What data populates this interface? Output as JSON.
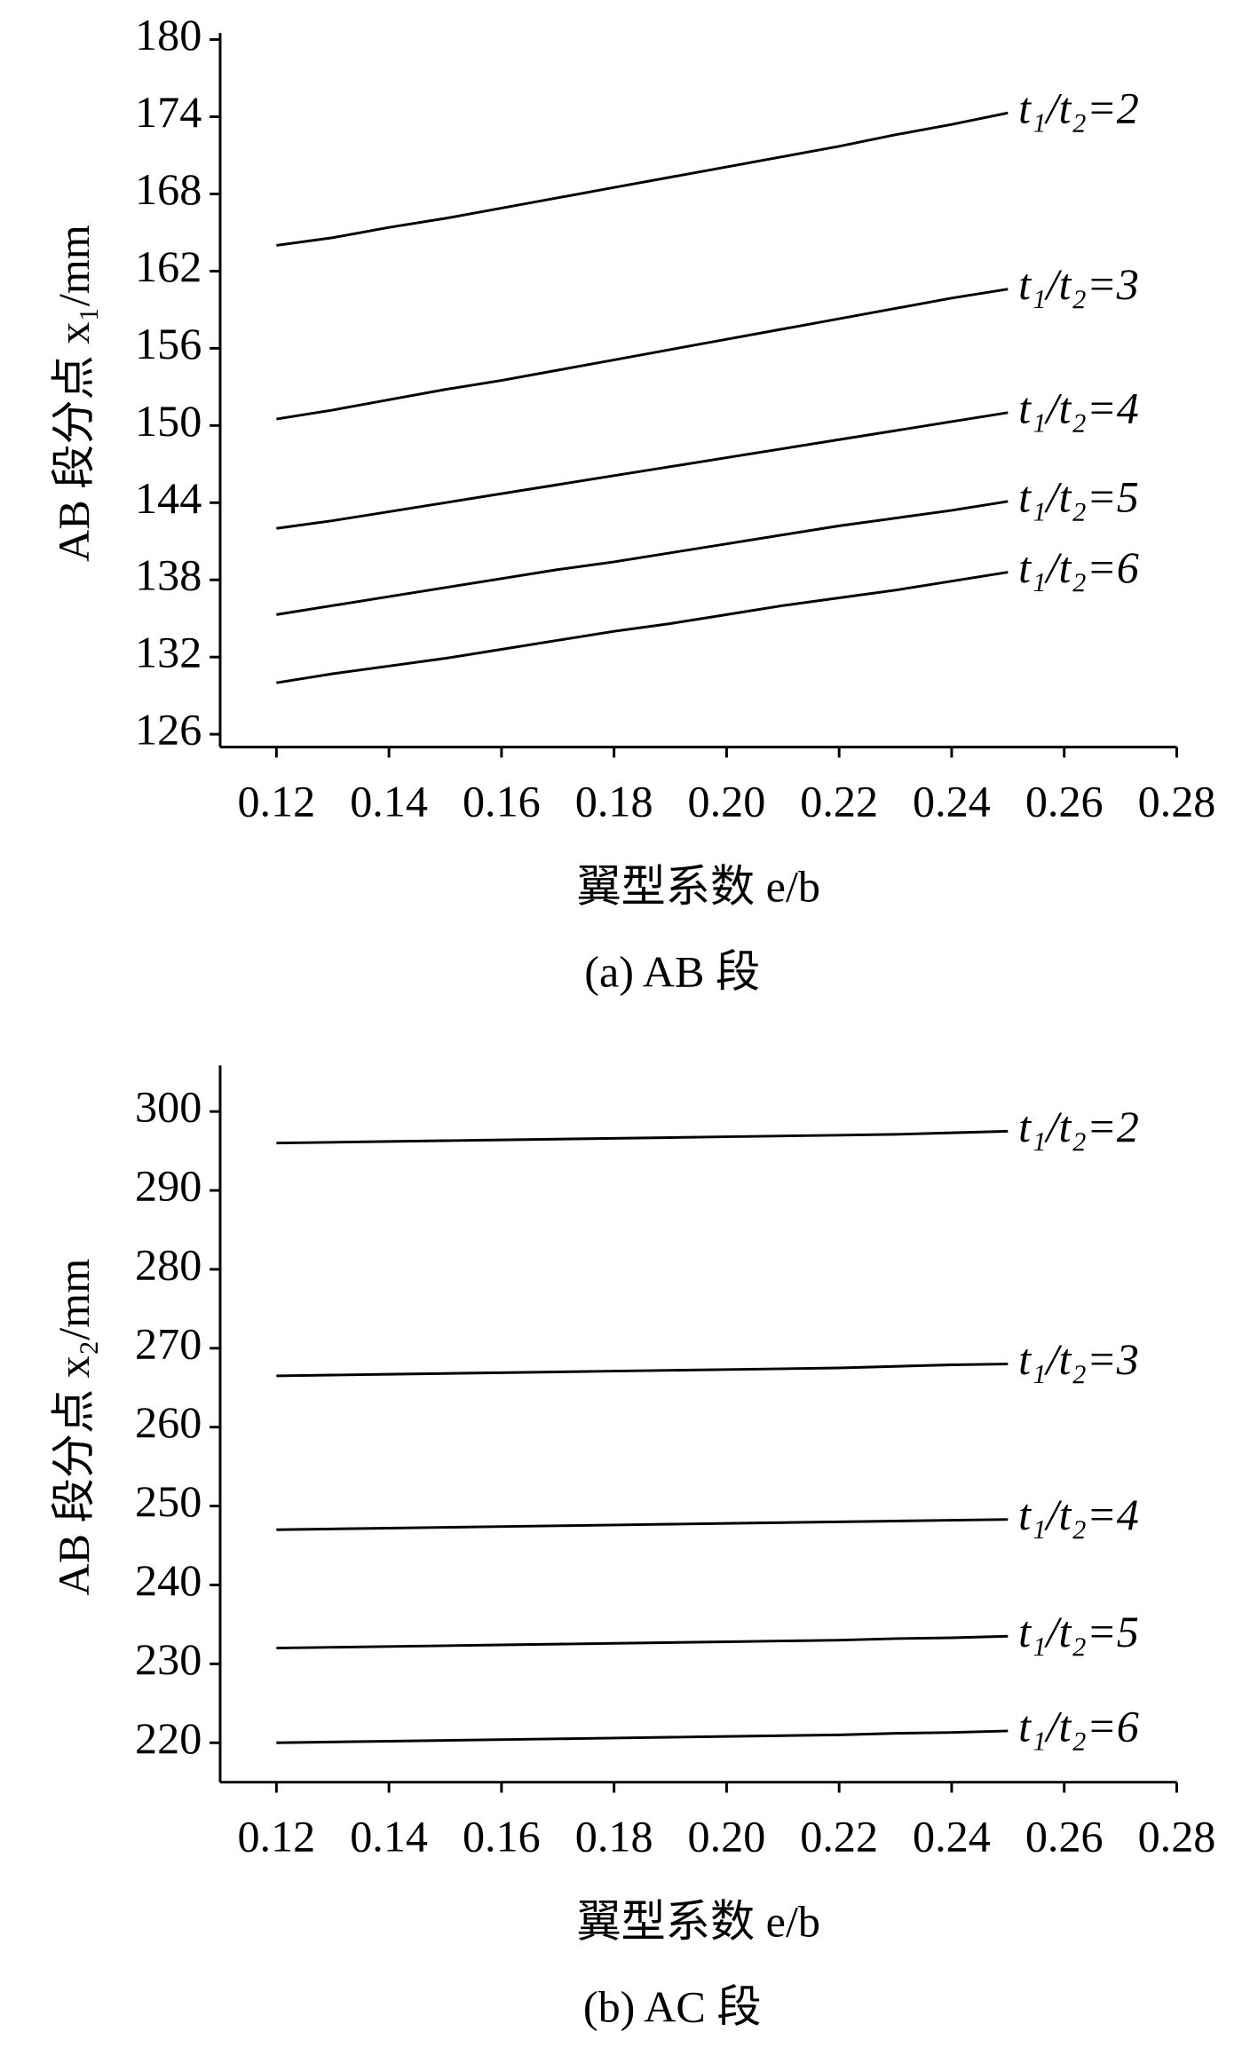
{
  "chart_data": [
    {
      "type": "line",
      "caption": "(a) AB 段",
      "x_label": "翼型系数 e/b",
      "y_label": "AB 段分点 x₁/mm",
      "x": [
        0.12,
        0.13,
        0.14,
        0.15,
        0.16,
        0.17,
        0.18,
        0.19,
        0.2,
        0.21,
        0.22,
        0.23,
        0.24,
        0.25
      ],
      "xlim": [
        0.11,
        0.28
      ],
      "xticks": [
        {
          "value": 0.12,
          "label": "0.12"
        },
        {
          "value": 0.14,
          "label": "0.14"
        },
        {
          "value": 0.16,
          "label": "0.16"
        },
        {
          "value": 0.18,
          "label": "0.18"
        },
        {
          "value": 0.2,
          "label": "0.20"
        },
        {
          "value": 0.22,
          "label": "0.22"
        },
        {
          "value": 0.24,
          "label": "0.24"
        },
        {
          "value": 0.26,
          "label": "0.26"
        },
        {
          "value": 0.28,
          "label": "0.28"
        }
      ],
      "ylim": [
        125,
        180
      ],
      "yticks": [
        126,
        132,
        138,
        144,
        150,
        156,
        162,
        168,
        174,
        180
      ],
      "series": [
        {
          "name": "t₁/t₂=2",
          "color": "#000000",
          "values": [
            164,
            164.6,
            165.4,
            166.1,
            166.9,
            167.7,
            168.5,
            169.3,
            170.1,
            170.9,
            171.7,
            172.6,
            173.4,
            174.3
          ]
        },
        {
          "name": "t₁/t₂=3",
          "color": "#000000",
          "values": [
            150.5,
            151.2,
            152.0,
            152.8,
            153.5,
            154.3,
            155.1,
            155.9,
            156.7,
            157.5,
            158.3,
            159.1,
            159.9,
            160.6
          ]
        },
        {
          "name": "t₁/t₂=4",
          "color": "#000000",
          "values": [
            142.0,
            142.6,
            143.3,
            144.0,
            144.7,
            145.4,
            146.1,
            146.8,
            147.5,
            148.2,
            148.9,
            149.6,
            150.3,
            151.0
          ]
        },
        {
          "name": "t₁/t₂=5",
          "color": "#000000",
          "values": [
            135.3,
            136.0,
            136.7,
            137.4,
            138.1,
            138.8,
            139.4,
            140.1,
            140.8,
            141.5,
            142.2,
            142.8,
            143.4,
            144.1
          ]
        },
        {
          "name": "t₁/t₂=6",
          "color": "#000000",
          "values": [
            130.0,
            130.7,
            131.3,
            131.9,
            132.6,
            133.3,
            134.0,
            134.6,
            135.3,
            136.0,
            136.6,
            137.2,
            137.9,
            138.6
          ]
        }
      ]
    },
    {
      "type": "line",
      "caption": "(b) AC 段",
      "x_label": "翼型系数 e/b",
      "y_label": "AB 段分点 x₂/mm",
      "x": [
        0.12,
        0.13,
        0.14,
        0.15,
        0.16,
        0.17,
        0.18,
        0.19,
        0.2,
        0.21,
        0.22,
        0.23,
        0.24,
        0.25
      ],
      "xlim": [
        0.11,
        0.28
      ],
      "xticks": [
        {
          "value": 0.12,
          "label": "0.12"
        },
        {
          "value": 0.14,
          "label": "0.14"
        },
        {
          "value": 0.16,
          "label": "0.16"
        },
        {
          "value": 0.18,
          "label": "0.18"
        },
        {
          "value": 0.2,
          "label": "0.20"
        },
        {
          "value": 0.22,
          "label": "0.22"
        },
        {
          "value": 0.24,
          "label": "0.24"
        },
        {
          "value": 0.26,
          "label": "0.26"
        },
        {
          "value": 0.28,
          "label": "0.28"
        }
      ],
      "ylim": [
        215,
        305
      ],
      "yticks": [
        220,
        230,
        240,
        250,
        260,
        270,
        280,
        290,
        300
      ],
      "series": [
        {
          "name": "t₁/t₂=2",
          "color": "#000000",
          "values": [
            296.0,
            296.1,
            296.2,
            296.3,
            296.4,
            296.5,
            296.6,
            296.7,
            296.8,
            296.9,
            297.0,
            297.1,
            297.3,
            297.5
          ]
        },
        {
          "name": "t₁/t₂=3",
          "color": "#000000",
          "values": [
            266.5,
            266.6,
            266.7,
            266.8,
            266.9,
            267.0,
            267.1,
            267.2,
            267.3,
            267.4,
            267.5,
            267.7,
            267.9,
            268.0
          ]
        },
        {
          "name": "t₁/t₂=4",
          "color": "#000000",
          "values": [
            247.0,
            247.1,
            247.2,
            247.3,
            247.4,
            247.5,
            247.6,
            247.7,
            247.8,
            247.9,
            248.0,
            248.1,
            248.2,
            248.3
          ]
        },
        {
          "name": "t₁/t₂=5",
          "color": "#000000",
          "values": [
            232.0,
            232.1,
            232.2,
            232.3,
            232.4,
            232.5,
            232.6,
            232.7,
            232.8,
            232.9,
            233.0,
            233.2,
            233.3,
            233.5
          ]
        },
        {
          "name": "t₁/t₂=6",
          "color": "#000000",
          "values": [
            220.0,
            220.1,
            220.2,
            220.3,
            220.4,
            220.5,
            220.6,
            220.7,
            220.8,
            220.9,
            221.0,
            221.2,
            221.3,
            221.5
          ]
        }
      ]
    }
  ]
}
